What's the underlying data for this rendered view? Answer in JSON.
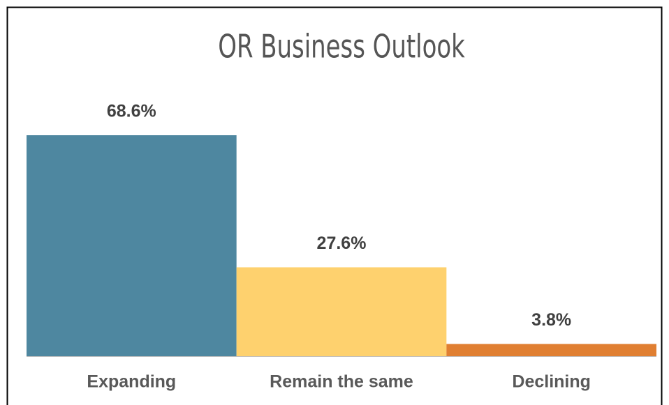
{
  "chart_data": {
    "type": "bar",
    "title": "OR Business Outlook",
    "categories": [
      "Expanding",
      "Remain the same",
      "Declining"
    ],
    "values": [
      68.6,
      27.6,
      3.8
    ],
    "value_labels": [
      "68.6%",
      "27.6%",
      "3.8%"
    ],
    "colors": [
      "#4e87a0",
      "#fed16e",
      "#e07f32"
    ]
  }
}
